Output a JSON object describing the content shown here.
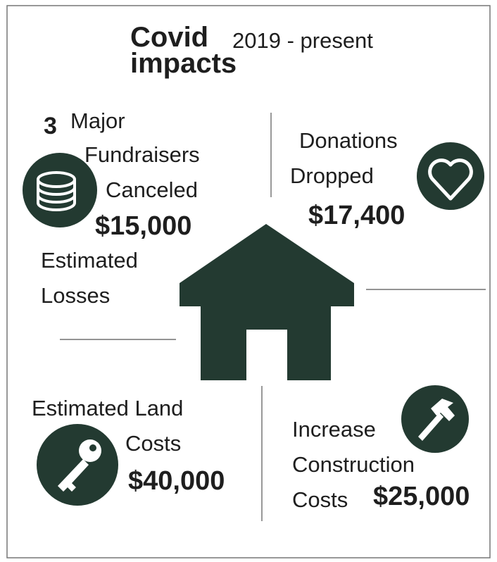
{
  "header": {
    "title": "Covid",
    "subtitle": "2019 - present",
    "title_line2": "impacts"
  },
  "sections": [
    {
      "count": "3",
      "lines": [
        "Major",
        "Fundraisers",
        "Canceled"
      ],
      "amount": "$15,000",
      "note": [
        "Estimated",
        "Losses"
      ]
    },
    {
      "lines": [
        "Donations",
        "Dropped"
      ],
      "amount": "$17,400"
    },
    {
      "lines": [
        "Estimated Land",
        "Costs"
      ],
      "amount": "$40,000"
    },
    {
      "lines": [
        "Increase",
        "Construction",
        "Costs"
      ],
      "amount": "$25,000"
    }
  ]
}
